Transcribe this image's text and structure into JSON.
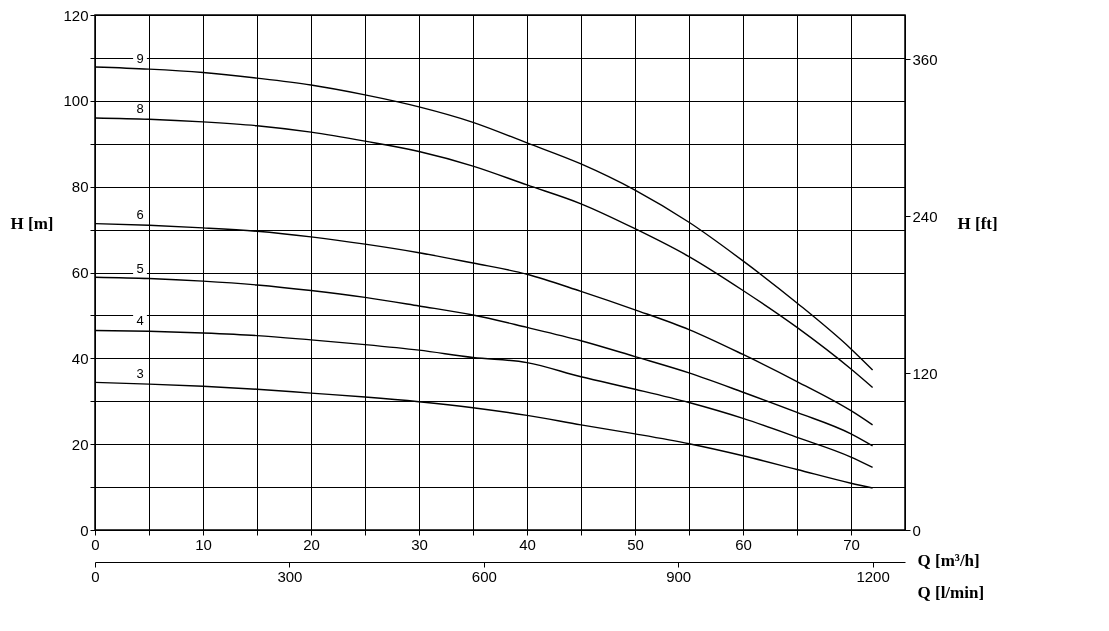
{
  "chart_data": {
    "type": "line",
    "xlabel": "Q [m³/h]",
    "ylabel": "H [m]",
    "y2label": "H [ft]",
    "x2label": "Q [l/min]",
    "x": [
      0,
      5,
      10,
      15,
      20,
      25,
      30,
      35,
      40,
      45,
      50,
      55,
      60,
      65,
      70,
      72
    ],
    "series": [
      {
        "name": "9",
        "color": "#000000",
        "values": [
          107.9,
          107.4,
          106.6,
          105.3,
          103.7,
          101.4,
          98.6,
          95.0,
          90.2,
          85.3,
          79.2,
          71.7,
          62.7,
          52.9,
          42.2,
          37.3
        ]
      },
      {
        "name": "8",
        "color": "#000000",
        "values": [
          96.0,
          95.7,
          95.1,
          94.2,
          92.7,
          90.6,
          88.2,
          84.8,
          80.4,
          76.0,
          70.2,
          63.7,
          55.8,
          47.2,
          37.5,
          33.2
        ]
      },
      {
        "name": "6",
        "color": "#000000",
        "values": [
          71.4,
          71.0,
          70.4,
          69.6,
          68.3,
          66.6,
          64.6,
          62.2,
          59.6,
          55.6,
          51.3,
          46.7,
          40.9,
          34.6,
          27.8,
          24.5
        ]
      },
      {
        "name": "5",
        "color": "#000000",
        "values": [
          58.9,
          58.6,
          58.0,
          57.1,
          55.8,
          54.2,
          52.2,
          50.1,
          47.2,
          44.1,
          40.4,
          36.6,
          32.1,
          27.4,
          22.4,
          19.6
        ]
      },
      {
        "name": "4",
        "color": "#000000",
        "values": [
          46.5,
          46.3,
          45.9,
          45.3,
          44.3,
          43.2,
          41.9,
          40.2,
          39.0,
          35.7,
          32.8,
          29.7,
          26.0,
          21.6,
          17.0,
          14.6
        ]
      },
      {
        "name": "3",
        "color": "#000000",
        "values": [
          34.4,
          34.0,
          33.5,
          32.8,
          31.9,
          31.0,
          29.9,
          28.5,
          26.7,
          24.5,
          22.4,
          20.1,
          17.3,
          14.1,
          10.9,
          9.8
        ]
      }
    ],
    "xlim": [
      0,
      75
    ],
    "xticks": [
      0,
      {
        "value": 5,
        "label": null
      },
      10,
      {
        "value": 15,
        "label": null
      },
      20,
      {
        "value": 25,
        "label": null
      },
      30,
      {
        "value": 35,
        "label": null
      },
      40,
      {
        "value": 45,
        "label": null
      },
      50,
      {
        "value": 55,
        "label": null
      },
      60,
      {
        "value": 65,
        "label": null
      },
      70
    ],
    "ylim": [
      0,
      120
    ],
    "yticks": [
      0,
      {
        "value": 10,
        "label": null
      },
      20,
      {
        "value": 30,
        "label": null
      },
      40,
      {
        "value": 50,
        "label": null
      },
      60,
      {
        "value": 70,
        "label": null
      },
      80,
      {
        "value": 90,
        "label": null
      },
      100,
      {
        "value": 110,
        "label": null
      },
      120
    ],
    "y2lim": [
      0,
      393.7
    ],
    "y2ticks": [
      0,
      120,
      240,
      360
    ],
    "x2lim": [
      0,
      1250
    ],
    "x2ticks": [
      0,
      300,
      600,
      900,
      1200
    ],
    "grid": true,
    "legend": false,
    "marker": "none",
    "line_style": "solid"
  }
}
